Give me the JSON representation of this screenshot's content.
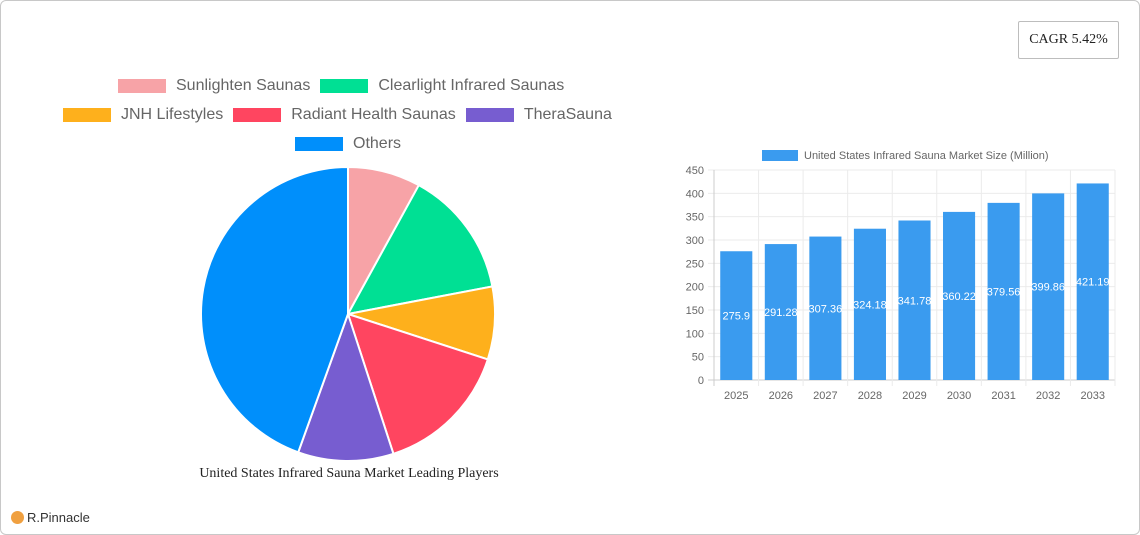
{
  "cagr_badge": "CAGR 5.42%",
  "pie": {
    "title": "United States Infrared Sauna Market Leading Players",
    "legend": [
      {
        "label": "Sunlighten Saunas",
        "color": "#f7a3a7"
      },
      {
        "label": "Clearlight Infrared Saunas",
        "color": "#00e094"
      },
      {
        "label": "JNH Lifestyles",
        "color": "#feb01c"
      },
      {
        "label": "Radiant Health Saunas",
        "color": "#ff4560"
      },
      {
        "label": "TheraSauna",
        "color": "#775dd0"
      },
      {
        "label": "Others",
        "color": "#008ffb"
      }
    ]
  },
  "bar": {
    "legend_label": "United States Infrared Sauna Market Size (Million)",
    "color": "#3a9bef"
  },
  "logo": {
    "text": "R.Pinnacle"
  },
  "chart_data": [
    {
      "type": "pie",
      "title": "United States Infrared Sauna Market Leading Players",
      "categories": [
        "Sunlighten Saunas",
        "Clearlight Infrared Saunas",
        "JNH Lifestyles",
        "Radiant Health Saunas",
        "TheraSauna",
        "Others"
      ],
      "values": [
        8,
        14,
        8,
        15,
        10.5,
        44.5
      ],
      "colors": [
        "#f7a3a7",
        "#00e094",
        "#feb01c",
        "#ff4560",
        "#775dd0",
        "#008ffb"
      ],
      "legend_position": "top"
    },
    {
      "type": "bar",
      "title": "",
      "categories": [
        "2025",
        "2026",
        "2027",
        "2028",
        "2029",
        "2030",
        "2031",
        "2032",
        "2033"
      ],
      "series": [
        {
          "name": "United States Infrared Sauna Market Size (Million)",
          "values": [
            275.9,
            291.28,
            307.36,
            324.18,
            341.78,
            360.22,
            379.56,
            399.86,
            421.19
          ]
        }
      ],
      "xlabel": "",
      "ylabel": "",
      "ylim": [
        0,
        450
      ],
      "yticks": [
        0,
        50,
        100,
        150,
        200,
        250,
        300,
        350,
        400,
        450
      ],
      "grid": true,
      "legend_position": "top",
      "annotation": "CAGR 5.42%"
    }
  ]
}
